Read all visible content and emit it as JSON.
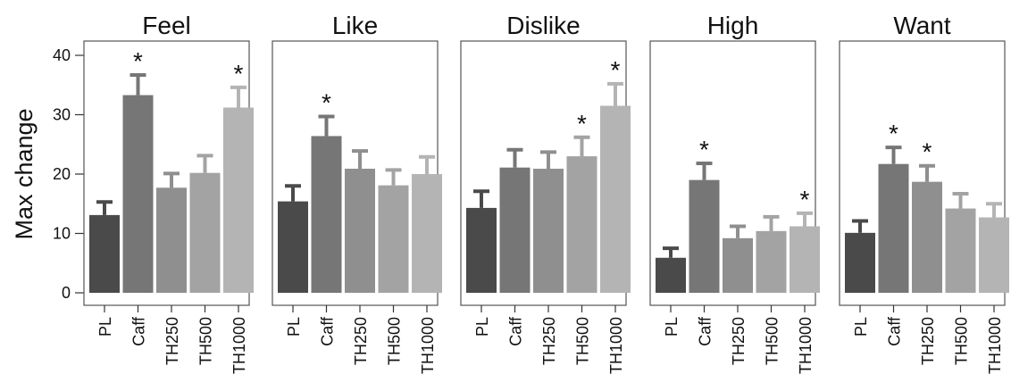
{
  "chart_data": {
    "type": "bar",
    "ylabel": "Max change",
    "ylim": [
      0,
      42
    ],
    "yticks": [
      0,
      10,
      20,
      30,
      40
    ],
    "categories": [
      "PL",
      "Caff",
      "TH250",
      "TH500",
      "TH1000"
    ],
    "bar_colors": [
      "#4a4a4a",
      "#767676",
      "#8f8f8f",
      "#a3a3a3",
      "#b4b4b4"
    ],
    "significance_marker": "*",
    "panels": [
      {
        "title": "Feel",
        "values": [
          13.1,
          33.3,
          17.7,
          20.2,
          31.2
        ],
        "errors": [
          2.2,
          3.4,
          2.4,
          2.9,
          3.4
        ],
        "significant": [
          false,
          true,
          false,
          false,
          true
        ]
      },
      {
        "title": "Like",
        "values": [
          15.4,
          26.4,
          20.9,
          18.1,
          20.0
        ],
        "errors": [
          2.6,
          3.3,
          3.0,
          2.6,
          2.9
        ],
        "significant": [
          false,
          true,
          false,
          false,
          false
        ]
      },
      {
        "title": "Dislike",
        "values": [
          14.3,
          21.1,
          20.9,
          23.0,
          31.5
        ],
        "errors": [
          2.8,
          3.0,
          2.8,
          3.2,
          3.7
        ],
        "significant": [
          false,
          false,
          false,
          true,
          true
        ]
      },
      {
        "title": "High",
        "values": [
          5.9,
          19.0,
          9.2,
          10.4,
          11.2
        ],
        "errors": [
          1.6,
          2.8,
          2.0,
          2.4,
          2.2
        ],
        "significant": [
          false,
          true,
          false,
          false,
          true
        ]
      },
      {
        "title": "Want",
        "values": [
          10.1,
          21.7,
          18.7,
          14.2,
          12.7
        ],
        "errors": [
          2.0,
          2.8,
          2.7,
          2.5,
          2.3
        ],
        "significant": [
          false,
          true,
          true,
          false,
          false
        ]
      }
    ]
  }
}
